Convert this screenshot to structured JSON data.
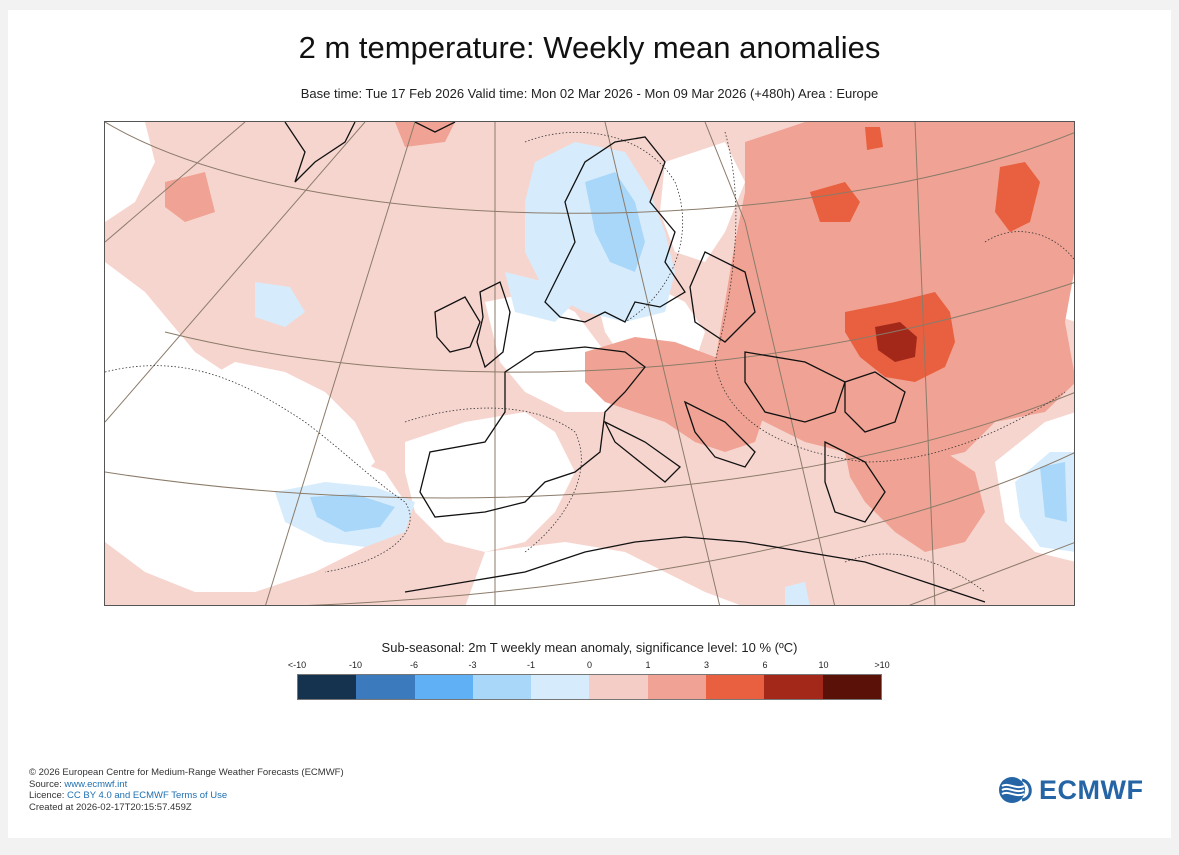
{
  "title": "2 m temperature: Weekly mean anomalies",
  "subtitle": "Base time: Tue 17 Feb 2026 Valid time: Mon 02 Mar 2026 - Mon 09 Mar 2026 (+480h) Area : Europe",
  "legend": {
    "title": "Sub-seasonal: 2m T weekly mean anomaly, significance level: 10 % (ºC)",
    "ticks": [
      "<-10",
      "-10",
      "-6",
      "-3",
      "-1",
      "0",
      "1",
      "3",
      "6",
      "10",
      ">10"
    ],
    "colors": [
      "#15324f",
      "#3b7bbd",
      "#5fb0f5",
      "#a9d7f9",
      "#d6ecfc",
      "#f5cdc7",
      "#f0a394",
      "#e8603f",
      "#a3281a",
      "#5a1208"
    ]
  },
  "footer": {
    "copyright": "© 2026 European Centre for Medium-Range Weather Forecasts (ECMWF)",
    "source_label": "Source:",
    "source_link": "www.ecmwf.int",
    "licence_label": "Licence:",
    "licence_link": "CC BY 4.0 and ECMWF Terms of Use",
    "created": "Created at 2026-02-17T20:15:57.459Z"
  },
  "logo": {
    "text": "ECMWF"
  }
}
